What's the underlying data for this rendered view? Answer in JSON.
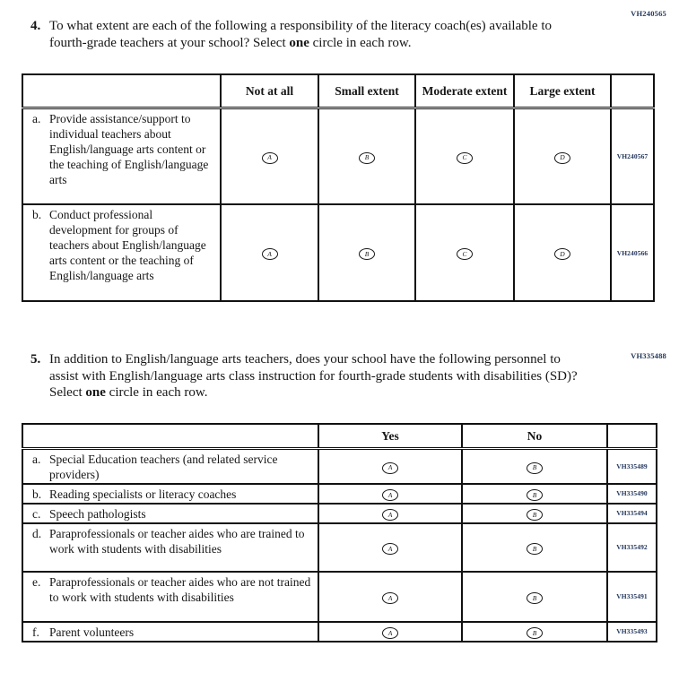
{
  "page": {
    "background": "#ffffff",
    "text_color": "#161616",
    "code_color": "#22365c"
  },
  "question4": {
    "code": "VH240565",
    "number": "4.",
    "text_a": "To what extent are each of the following a responsibility of the literacy coach(es) available to fourth-grade teachers at your school? Select",
    "bold_word": "one",
    "text_b": "circle in each row.",
    "table": {
      "columns": [
        "Not at all",
        "Small extent",
        "Moderate extent",
        "Large extent"
      ],
      "rows": [
        {
          "letter": "a.",
          "label": "Provide assistance/support to individual teachers about English/language arts content or the teaching of English/language arts",
          "options": [
            "A",
            "B",
            "C",
            "D"
          ],
          "code": "VH240567"
        },
        {
          "letter": "b.",
          "label": "Conduct professional development for groups of teachers about English/language arts content or the teaching of English/language arts",
          "options": [
            "A",
            "B",
            "C",
            "D"
          ],
          "code": "VH240566"
        }
      ]
    }
  },
  "question5": {
    "code": "VH335488",
    "number": "5.",
    "text_a": "In addition to English/language arts teachers, does your school have the following personnel to assist with English/language arts class instruction for fourth-grade students with disabilities (SD)? Select",
    "bold_word": "one",
    "text_b": "circle in each row.",
    "table": {
      "columns": [
        "Yes",
        "No"
      ],
      "rows": [
        {
          "letter": "a.",
          "label": "Special Education teachers (and related service providers)",
          "options": [
            "A",
            "B"
          ],
          "code": "VH335489"
        },
        {
          "letter": "b.",
          "label": "Reading specialists or literacy coaches",
          "options": [
            "A",
            "B"
          ],
          "code": "VH335490"
        },
        {
          "letter": "c.",
          "label": "Speech pathologists",
          "options": [
            "A",
            "B"
          ],
          "code": "VH335494"
        },
        {
          "letter": "d.",
          "label": "Paraprofessionals or teacher aides who are trained to work with students with disabilities",
          "options": [
            "A",
            "B"
          ],
          "code": "VH335492"
        },
        {
          "letter": "e.",
          "label": "Paraprofessionals or teacher aides who are not trained to work with students with disabilities",
          "options": [
            "A",
            "B"
          ],
          "code": "VH335491"
        },
        {
          "letter": "f.",
          "label": "Parent volunteers",
          "options": [
            "A",
            "B"
          ],
          "code": "VH335493"
        }
      ]
    }
  }
}
